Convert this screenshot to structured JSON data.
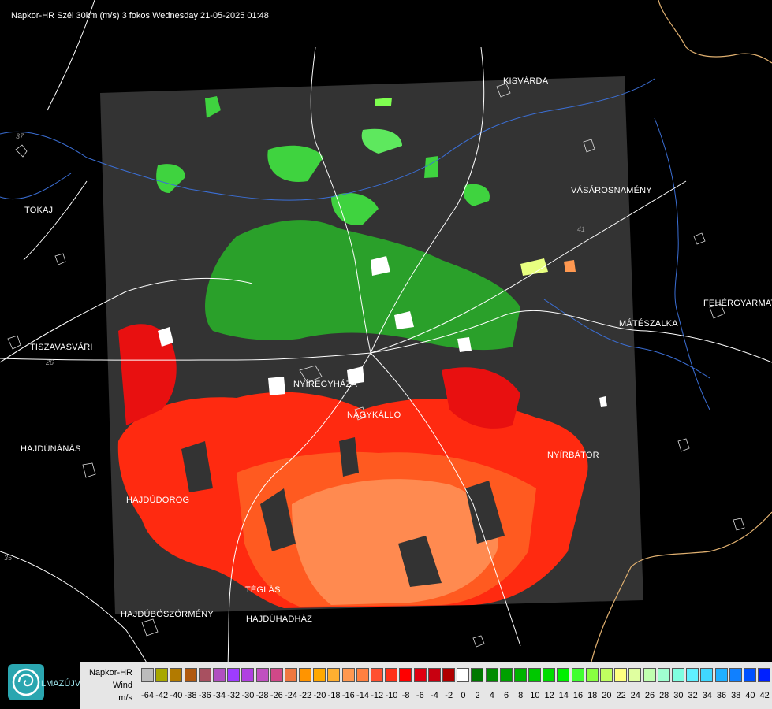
{
  "title": "Napkor-HR Szél 30km (m/s) 3 fokos Wednesday 21-05-2025 01:48",
  "towns": [
    {
      "name": "KISVÁRDA",
      "id": "kisvarda"
    },
    {
      "name": "VÁSÁROSNAMÉNY",
      "id": "vasarosnameny"
    },
    {
      "name": "TOKAJ",
      "id": "tokaj"
    },
    {
      "name": "FEHÉRGYARMAT",
      "id": "fehergyarmat"
    },
    {
      "name": "MÁTÉSZALKA",
      "id": "mateszalka"
    },
    {
      "name": "TISZAVASVÁRI",
      "id": "tiszavasvari"
    },
    {
      "name": "NYÍREGYHÁZA",
      "id": "nyiregyhaza"
    },
    {
      "name": "NAGYKÁLLÓ",
      "id": "nagykallo"
    },
    {
      "name": "HAJDÚNÁNÁS",
      "id": "hajdunanas"
    },
    {
      "name": "NYÍRBÁTOR",
      "id": "nyirbator"
    },
    {
      "name": "HAJDÚDOROG",
      "id": "hajdudorog"
    },
    {
      "name": "TÉGLÁS",
      "id": "teglas"
    },
    {
      "name": "HAJDÚBÖSZÖRMÉNY",
      "id": "hajduboszormeny"
    },
    {
      "name": "HAJDÚHADHÁZ",
      "id": "hajduhadhaz"
    }
  ],
  "road_numbers": [
    "37",
    "26",
    "35",
    "41"
  ],
  "legend": {
    "product": "Napkor-HR",
    "variable": "Wind",
    "unit": "m/s",
    "ticks": [
      "-64",
      "-42",
      "-40",
      "-38",
      "-36",
      "-34",
      "-32",
      "-30",
      "-28",
      "-26",
      "-24",
      "-22",
      "-20",
      "-18",
      "-16",
      "-14",
      "-12",
      "-10",
      "-8",
      "-6",
      "-4",
      "-2",
      "0",
      "2",
      "4",
      "6",
      "8",
      "10",
      "12",
      "14",
      "16",
      "18",
      "20",
      "22",
      "24",
      "26",
      "28",
      "30",
      "32",
      "34",
      "36",
      "38",
      "40",
      "42"
    ],
    "colors": [
      "#bcbcbc",
      "#a8a800",
      "#b27a00",
      "#b05a10",
      "#a85060",
      "#b050c0",
      "#9e3cff",
      "#b040e0",
      "#c050c0",
      "#d04888",
      "#f07840",
      "#ff9400",
      "#ffa800",
      "#ffb030",
      "#ff9850",
      "#ff8040",
      "#ff5030",
      "#ff3018",
      "#ff0000",
      "#e00010",
      "#c80010",
      "#b00000",
      "#ffffff",
      "#007800",
      "#008c00",
      "#00a000",
      "#00b400",
      "#00c800",
      "#00dc00",
      "#00f000",
      "#40ff30",
      "#88ff40",
      "#c0ff60",
      "#ffff80",
      "#e0ffa0",
      "#c0ffb0",
      "#a0ffd0",
      "#80ffe0",
      "#60f0ff",
      "#40d8ff",
      "#20b0ff",
      "#1080ff",
      "#0050ff",
      "#0020ff"
    ]
  },
  "logo_text": "LMAZÚJVÁR"
}
